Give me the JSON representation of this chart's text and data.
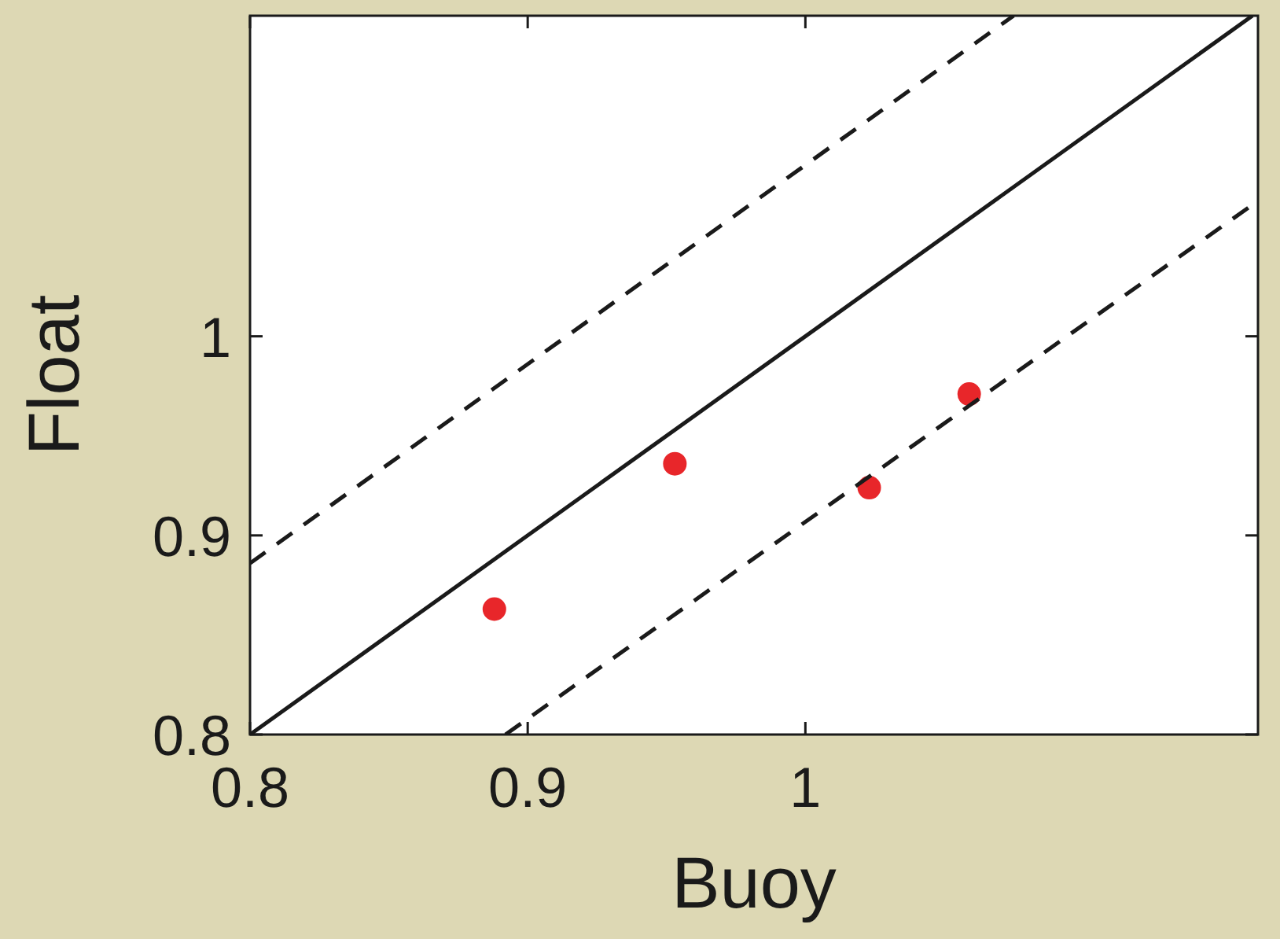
{
  "chart_data": {
    "type": "scatter",
    "xlabel": "Buoy",
    "ylabel": "Float",
    "xlim": [
      0.8,
      1.163
    ],
    "ylim": [
      0.8,
      1.161
    ],
    "xticks": [
      0.8,
      0.9,
      1
    ],
    "yticks": [
      0.8,
      0.9,
      1
    ],
    "grid": false,
    "series": [
      {
        "color": "#e8262a",
        "marker": "circle",
        "x": [
          0.888,
          0.953,
          1.023,
          1.059
        ],
        "values": [
          0.863,
          0.936,
          0.924,
          0.971
        ]
      },
      {
        "type": "line",
        "color": "#1a1a1a",
        "line_style": "solid",
        "x": [
          0.8,
          1.161
        ],
        "values": [
          0.8,
          1.161
        ]
      },
      {
        "type": "line",
        "color": "#1a1a1a",
        "line_style": "dashed",
        "x": [
          0.8,
          1.075
        ],
        "values": [
          0.886,
          1.161
        ]
      },
      {
        "type": "line",
        "color": "#1a1a1a",
        "line_style": "dashed",
        "x": [
          0.892,
          1.163
        ],
        "values": [
          0.8,
          1.068
        ]
      }
    ]
  }
}
